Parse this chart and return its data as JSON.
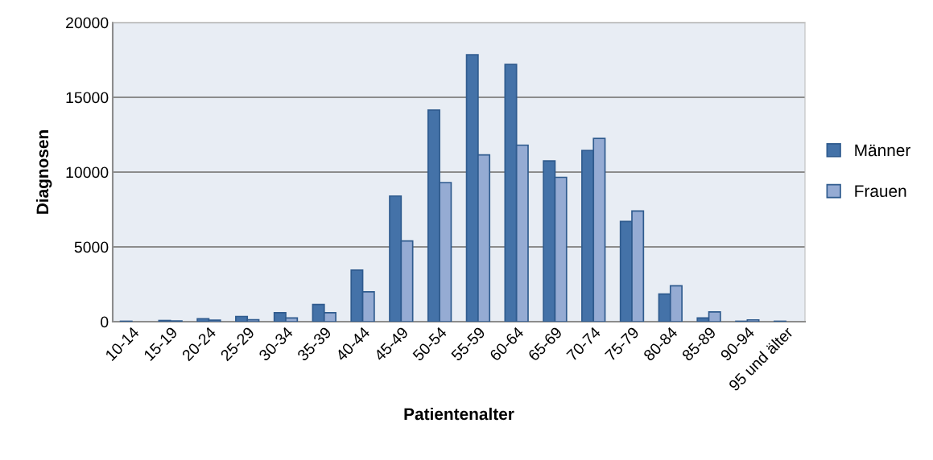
{
  "chart_data": {
    "type": "bar",
    "xlabel": "Patientenalter",
    "ylabel": "Diagnosen",
    "categories": [
      "10-14",
      "15-19",
      "20-24",
      "25-29",
      "30-34",
      "35-39",
      "40-44",
      "45-49",
      "50-54",
      "55-59",
      "60-64",
      "65-69",
      "70-74",
      "75-79",
      "80-84",
      "85-89",
      "90-94",
      "95 und älter"
    ],
    "series": [
      {
        "name": "Männer",
        "color": "#4472a8",
        "values": [
          30,
          80,
          200,
          350,
          600,
          1150,
          3450,
          8400,
          14150,
          17850,
          17200,
          10750,
          11450,
          6700,
          1850,
          250,
          30,
          30
        ]
      },
      {
        "name": "Frauen",
        "color": "#95abd3",
        "values": [
          null,
          50,
          100,
          130,
          250,
          600,
          2000,
          5400,
          9300,
          11150,
          11800,
          9650,
          12250,
          7400,
          2400,
          650,
          120,
          null
        ]
      }
    ],
    "ylim": [
      0,
      20000
    ],
    "yticks": [
      0,
      5000,
      10000,
      15000,
      20000
    ],
    "grid": "y",
    "legend": "right"
  }
}
